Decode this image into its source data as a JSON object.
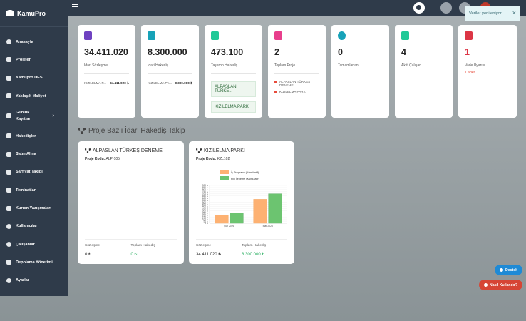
{
  "app": {
    "title": "KamuPro"
  },
  "sidebar": {
    "items": [
      {
        "label": "Anasayfa"
      },
      {
        "label": "Projeler"
      },
      {
        "label": "Kamupro DES"
      },
      {
        "label": "Yaklaşık Maliyet"
      },
      {
        "label": "Günlük Kayıtlar"
      },
      {
        "label": "Hakedişler"
      },
      {
        "label": "Satın Alma"
      },
      {
        "label": "Sarfiyat Takibi"
      },
      {
        "label": "Teminatlar"
      },
      {
        "label": "Kurum Yazışmaları"
      },
      {
        "label": "Kullanıcılar"
      },
      {
        "label": "Çalışanlar"
      },
      {
        "label": "Depolama Yönetimi"
      },
      {
        "label": "Ayarlar"
      }
    ]
  },
  "toast": {
    "text": "Veriler yenileniyor..."
  },
  "stats": [
    {
      "value": "34.411.020",
      "label": "İdari Sözleşme",
      "row_label": "KIZILELMA P...",
      "row_value": "34.411.020 ₺",
      "color": "#6f42c1"
    },
    {
      "value": "8.300.000",
      "label": "İdari Hakediş",
      "row_label": "KIZILELMA PA...",
      "row_value": "8.300.000 ₺",
      "color": "#17a2b8"
    },
    {
      "value": "473.100",
      "label": "Taşeron Hakediş",
      "tags": [
        "ALPASLAN TÜRKE...",
        "KIZILELMA PARKI"
      ],
      "color": "#20c997"
    },
    {
      "value": "2",
      "label": "Toplam Proje",
      "bullets": [
        "ALPASLAN TÜRKEŞ DENEME",
        "KIZILELMA PARKI"
      ],
      "color": "#e83e8c"
    },
    {
      "value": "0",
      "label": "Tamamlanan",
      "color": "#17a2b8"
    },
    {
      "value": "4",
      "label": "Aktif Çalışan",
      "color": "#20c997"
    },
    {
      "value": "1",
      "label": "Vade Uyarısı",
      "warn": "1 adet",
      "color": "#dc3545",
      "value_color": "#dc3545"
    }
  ],
  "section": {
    "title": "Proje Bazlı İdari Hakediş Takip"
  },
  "projects": [
    {
      "title": "ALPASLAN TÜRKEŞ DENEME",
      "code_label": "Proje Kodu:",
      "code": "ALP-105",
      "contract_label": "Sözleşme",
      "contract_value": "0 ₺",
      "hakedis_label": "Toplam Hakediş",
      "hakedis_value": "0 ₺"
    },
    {
      "title": "KIZILELMA PARKI",
      "code_label": "Proje Kodu:",
      "code": "KZL102",
      "contract_label": "Sözleşme",
      "contract_value": "34.411.020 ₺",
      "hakedis_label": "Toplam Hakediş",
      "hakedis_value": "8.300.000 ₺"
    }
  ],
  "chart_data": {
    "type": "bar",
    "categories": [
      "Şub 2026",
      "Mar 2026"
    ],
    "series": [
      {
        "name": "İş Programı (Kümülatif)",
        "values": [
          200,
          570
        ],
        "color": "#fdb172"
      },
      {
        "name": "Fiili İlerleme (Kümülatif)",
        "values": [
          250,
          700
        ],
        "color": "#6cc470"
      }
    ],
    "yticks": [
      "0 ₺",
      "50 ₺",
      "100 ₺",
      "150 ₺",
      "200 ₺",
      "250 ₺",
      "300 ₺",
      "350 ₺",
      "400 ₺",
      "450 ₺",
      "500 ₺",
      "550 ₺",
      "600 ₺",
      "650 ₺",
      "700 ₺",
      "750 ₺",
      "800 ₺",
      "850 ₺",
      "900 ₺"
    ],
    "ylim": [
      0,
      900
    ],
    "legend": "top"
  },
  "buttons": {
    "destek": "Destek",
    "nasil": "Nasıl Kullanılır?"
  }
}
